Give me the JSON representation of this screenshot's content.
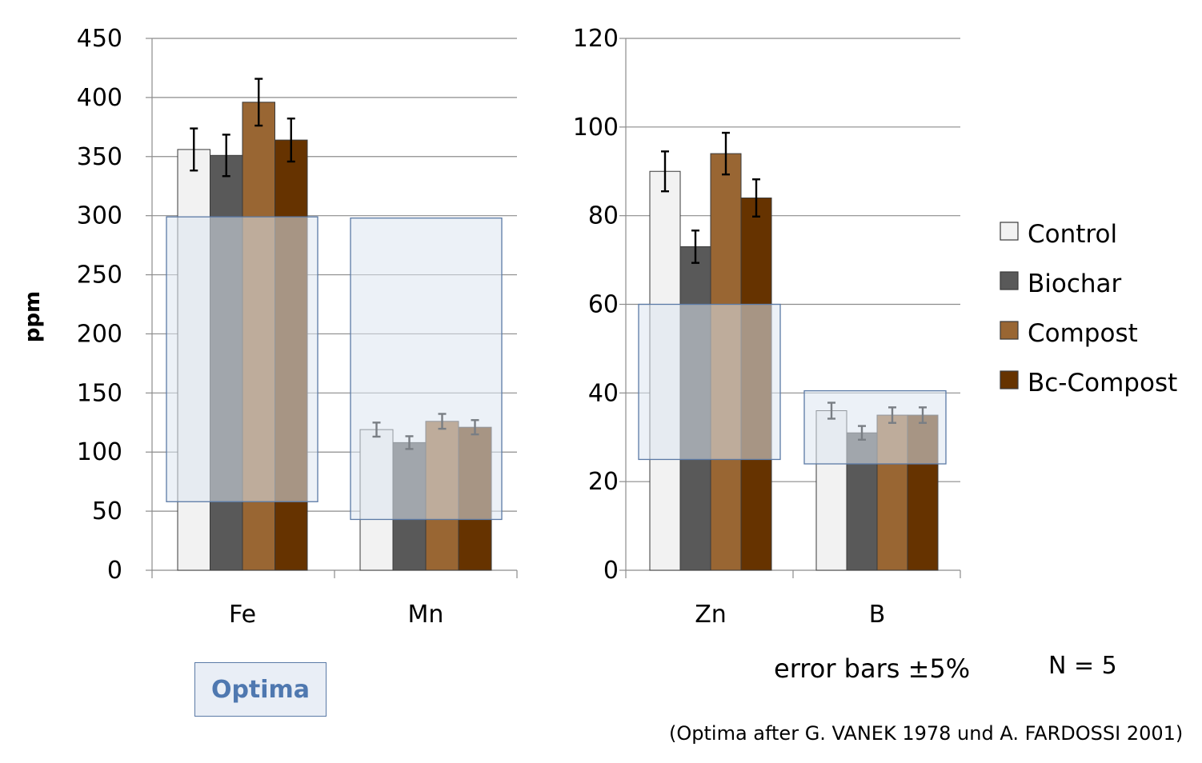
{
  "chart_data": [
    {
      "type": "bar",
      "categories": [
        "Fe",
        "Mn"
      ],
      "ylabel": "ppm",
      "ylim": [
        0,
        450
      ],
      "yticks": [
        0,
        50,
        100,
        150,
        200,
        250,
        300,
        350,
        400,
        450
      ],
      "grid": true,
      "series": [
        {
          "name": "Control",
          "values": [
            356,
            119
          ]
        },
        {
          "name": "Biochar",
          "values": [
            351,
            108
          ]
        },
        {
          "name": "Compost",
          "values": [
            396,
            126
          ]
        },
        {
          "name": "Bc-Compost",
          "values": [
            364,
            121
          ]
        }
      ],
      "error_bars_percent": 5,
      "optima_ranges": [
        [
          58,
          299
        ],
        [
          43,
          298
        ]
      ]
    },
    {
      "type": "bar",
      "categories": [
        "Zn",
        "B"
      ],
      "ylabel": "",
      "ylim": [
        0,
        120
      ],
      "yticks": [
        0,
        20,
        40,
        60,
        80,
        100,
        120
      ],
      "grid": true,
      "series": [
        {
          "name": "Control",
          "values": [
            90,
            36
          ]
        },
        {
          "name": "Biochar",
          "values": [
            73,
            31
          ]
        },
        {
          "name": "Compost",
          "values": [
            94,
            35
          ]
        },
        {
          "name": "Bc-Compost",
          "values": [
            84,
            35
          ]
        }
      ],
      "error_bars_percent": 5,
      "optima_ranges": [
        [
          25,
          60
        ],
        [
          24,
          40.5
        ]
      ]
    }
  ],
  "legend": {
    "position": "right",
    "items": [
      {
        "label": "Control",
        "color": "#f2f2f2"
      },
      {
        "label": "Biochar",
        "color": "#595959"
      },
      {
        "label": "Compost",
        "color": "#996633"
      },
      {
        "label": "Bc-Compost",
        "color": "#663300"
      }
    ]
  },
  "colors": {
    "series": [
      "#f2f2f2",
      "#595959",
      "#996633",
      "#663300"
    ],
    "optima_fill": "#dce5f1",
    "optima_stroke": "#5b7aa6",
    "optima_text": "#4f78b0"
  },
  "labels": {
    "optima": "Optima",
    "error_note": "error bars ±5%",
    "n_note": "N = 5",
    "source_note": "(Optima after G. VANEK 1978 und A. FARDOSSI 2001)"
  }
}
